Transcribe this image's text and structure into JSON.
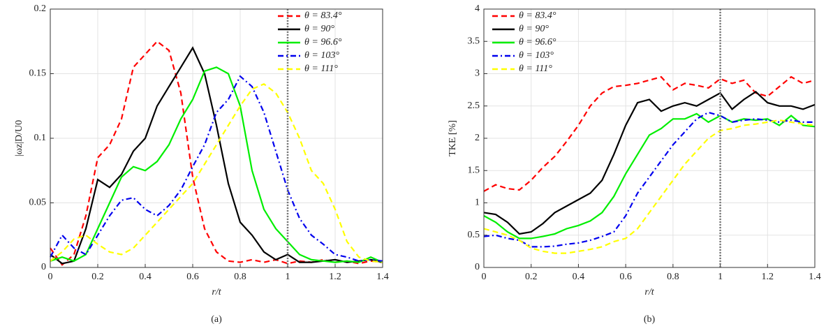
{
  "chart_data": [
    {
      "type": "line",
      "label": "(a)",
      "xlabel": "r/t",
      "ylabel": "|ωz|D/U0",
      "xlim": [
        0,
        1.4
      ],
      "ylim": [
        0,
        0.2
      ],
      "xticks": [
        0,
        0.2,
        0.4,
        0.6,
        0.8,
        1,
        1.2,
        1.4
      ],
      "yticks": [
        0,
        0.05,
        0.1,
        0.15,
        0.2
      ],
      "grid": true,
      "legend": "upper right",
      "vline": 1,
      "x": [
        0,
        0.05,
        0.1,
        0.15,
        0.2,
        0.25,
        0.3,
        0.35,
        0.4,
        0.45,
        0.5,
        0.55,
        0.6,
        0.65,
        0.7,
        0.75,
        0.8,
        0.85,
        0.9,
        0.95,
        1,
        1.05,
        1.1,
        1.15,
        1.2,
        1.25,
        1.3,
        1.35,
        1.4
      ],
      "series": [
        {
          "name": "θ = 83.4°",
          "color": "#ff0000",
          "dash": "dashed",
          "values": [
            0.015,
            0.002,
            0.01,
            0.04,
            0.085,
            0.095,
            0.115,
            0.155,
            0.165,
            0.175,
            0.168,
            0.135,
            0.07,
            0.03,
            0.012,
            0.005,
            0.004,
            0.006,
            0.004,
            0.006,
            0.003,
            0.005,
            0.004,
            0.006,
            0.004,
            0.005,
            0.003,
            0.005,
            0.004
          ]
        },
        {
          "name": "θ = 90°",
          "color": "#000000",
          "dash": "solid",
          "values": [
            0.01,
            0.003,
            0.005,
            0.03,
            0.068,
            0.062,
            0.072,
            0.09,
            0.1,
            0.125,
            0.14,
            0.155,
            0.17,
            0.15,
            0.11,
            0.065,
            0.035,
            0.025,
            0.012,
            0.006,
            0.01,
            0.004,
            0.004,
            0.005,
            0.006,
            0.004,
            0.005,
            0.006,
            0.004
          ]
        },
        {
          "name": "θ = 96.6°",
          "color": "#00ee00",
          "dash": "solid",
          "values": [
            0.005,
            0.008,
            0.005,
            0.01,
            0.03,
            0.05,
            0.07,
            0.078,
            0.075,
            0.082,
            0.095,
            0.115,
            0.13,
            0.152,
            0.155,
            0.15,
            0.125,
            0.075,
            0.045,
            0.03,
            0.02,
            0.01,
            0.006,
            0.005,
            0.004,
            0.005,
            0.004,
            0.008,
            0.004
          ]
        },
        {
          "name": "θ = 103°",
          "color": "#0000ee",
          "dash": "dashdot",
          "values": [
            0.008,
            0.025,
            0.015,
            0.01,
            0.025,
            0.04,
            0.052,
            0.054,
            0.045,
            0.04,
            0.048,
            0.06,
            0.078,
            0.095,
            0.12,
            0.13,
            0.148,
            0.14,
            0.12,
            0.09,
            0.06,
            0.038,
            0.025,
            0.018,
            0.01,
            0.008,
            0.005,
            0.006,
            0.005
          ]
        },
        {
          "name": "θ = 111°",
          "color": "#ffff00",
          "dash": "dashed",
          "values": [
            0.005,
            0.012,
            0.022,
            0.025,
            0.018,
            0.012,
            0.01,
            0.015,
            0.025,
            0.035,
            0.045,
            0.055,
            0.065,
            0.08,
            0.095,
            0.11,
            0.125,
            0.138,
            0.142,
            0.135,
            0.12,
            0.1,
            0.075,
            0.065,
            0.045,
            0.02,
            0.008,
            0.005,
            0.004
          ]
        }
      ]
    },
    {
      "type": "line",
      "label": "(b)",
      "xlabel": "r/t",
      "ylabel": "TKE [%]",
      "xlim": [
        0,
        1.4
      ],
      "ylim": [
        0,
        4
      ],
      "xticks": [
        0,
        0.2,
        0.4,
        0.6,
        0.8,
        1,
        1.2,
        1.4
      ],
      "yticks": [
        0,
        0.5,
        1,
        1.5,
        2,
        2.5,
        3,
        3.5,
        4
      ],
      "grid": true,
      "legend": "upper left",
      "vline": 1,
      "x": [
        0,
        0.05,
        0.1,
        0.15,
        0.2,
        0.25,
        0.3,
        0.35,
        0.4,
        0.45,
        0.5,
        0.55,
        0.6,
        0.65,
        0.7,
        0.75,
        0.8,
        0.85,
        0.9,
        0.95,
        1,
        1.05,
        1.1,
        1.15,
        1.2,
        1.25,
        1.3,
        1.35,
        1.4
      ],
      "series": [
        {
          "name": "θ = 83.4°",
          "color": "#ff0000",
          "dash": "dashed",
          "values": [
            1.18,
            1.28,
            1.22,
            1.2,
            1.35,
            1.55,
            1.72,
            1.95,
            2.2,
            2.5,
            2.7,
            2.8,
            2.82,
            2.85,
            2.9,
            2.95,
            2.75,
            2.85,
            2.82,
            2.78,
            2.92,
            2.85,
            2.9,
            2.7,
            2.65,
            2.8,
            2.95,
            2.85,
            2.9
          ]
        },
        {
          "name": "θ = 90°",
          "color": "#000000",
          "dash": "solid",
          "values": [
            0.85,
            0.82,
            0.7,
            0.52,
            0.55,
            0.68,
            0.85,
            0.95,
            1.05,
            1.15,
            1.35,
            1.75,
            2.2,
            2.55,
            2.6,
            2.42,
            2.5,
            2.55,
            2.5,
            2.6,
            2.7,
            2.45,
            2.6,
            2.72,
            2.55,
            2.5,
            2.5,
            2.45,
            2.52
          ]
        },
        {
          "name": "θ = 96.6°",
          "color": "#00ee00",
          "dash": "solid",
          "values": [
            0.8,
            0.7,
            0.55,
            0.45,
            0.45,
            0.48,
            0.52,
            0.6,
            0.65,
            0.72,
            0.85,
            1.1,
            1.45,
            1.75,
            2.05,
            2.15,
            2.3,
            2.3,
            2.38,
            2.25,
            2.35,
            2.25,
            2.3,
            2.28,
            2.3,
            2.2,
            2.35,
            2.2,
            2.18
          ]
        },
        {
          "name": "θ = 103°",
          "color": "#0000ee",
          "dash": "dashdot",
          "values": [
            0.48,
            0.5,
            0.45,
            0.42,
            0.32,
            0.32,
            0.33,
            0.36,
            0.38,
            0.42,
            0.48,
            0.55,
            0.8,
            1.15,
            1.4,
            1.65,
            1.9,
            2.1,
            2.3,
            2.4,
            2.35,
            2.25,
            2.28,
            2.3,
            2.28,
            2.25,
            2.28,
            2.25,
            2.25
          ]
        },
        {
          "name": "θ = 111°",
          "color": "#ffff00",
          "dash": "dashed",
          "values": [
            0.6,
            0.55,
            0.5,
            0.42,
            0.3,
            0.25,
            0.22,
            0.22,
            0.25,
            0.28,
            0.32,
            0.4,
            0.45,
            0.6,
            0.85,
            1.1,
            1.35,
            1.6,
            1.8,
            2,
            2.12,
            2.15,
            2.2,
            2.22,
            2.25,
            2.28,
            2.25,
            2.22,
            2.2
          ]
        }
      ]
    }
  ]
}
